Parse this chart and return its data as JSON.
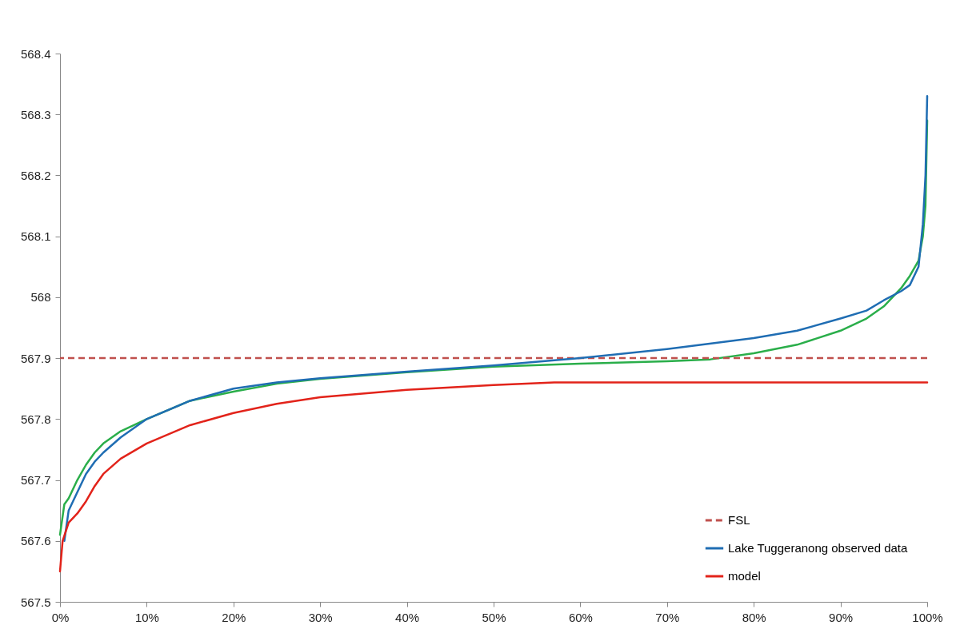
{
  "chart_data": {
    "type": "line",
    "series": [
      {
        "color": "#2aae4a",
        "x": [
          0,
          0.5,
          1,
          2,
          3,
          4,
          5,
          7,
          10,
          15,
          20,
          25,
          30,
          40,
          50,
          60,
          70,
          75,
          80,
          85,
          90,
          93,
          95,
          97,
          98,
          99,
          99.5,
          99.8,
          100
        ],
        "values": [
          567.61,
          567.66,
          567.67,
          567.7,
          567.725,
          567.745,
          567.76,
          567.78,
          567.8,
          567.83,
          567.845,
          567.858,
          567.866,
          567.877,
          567.886,
          567.891,
          567.895,
          567.898,
          567.908,
          567.922,
          567.945,
          567.965,
          567.985,
          568.015,
          568.035,
          568.06,
          568.1,
          568.15,
          568.29
        ]
      },
      {
        "name": "Lake Tuggeranong observed data",
        "color": "#1f6db3",
        "x": [
          0.5,
          1,
          2,
          3,
          4,
          5,
          7,
          10,
          15,
          20,
          25,
          30,
          40,
          50,
          60,
          70,
          80,
          85,
          90,
          93,
          95,
          97,
          98,
          99,
          99.5,
          99.8,
          100
        ],
        "values": [
          567.6,
          567.65,
          567.68,
          567.71,
          567.73,
          567.745,
          567.77,
          567.8,
          567.83,
          567.85,
          567.86,
          567.867,
          567.878,
          567.888,
          567.9,
          567.915,
          567.933,
          567.945,
          567.965,
          567.978,
          567.995,
          568.01,
          568.02,
          568.05,
          568.12,
          568.2,
          568.33
        ]
      },
      {
        "name": "model",
        "color": "#e2231a",
        "x": [
          0,
          0.3,
          1,
          2,
          3,
          4,
          5,
          7,
          10,
          15,
          20,
          25,
          30,
          40,
          50,
          57,
          100
        ],
        "values": [
          567.55,
          567.6,
          567.63,
          567.645,
          567.665,
          567.69,
          567.71,
          567.735,
          567.76,
          567.79,
          567.81,
          567.825,
          567.836,
          567.848,
          567.856,
          567.86,
          567.86
        ]
      }
    ],
    "ref_lines": [
      {
        "axis": "y",
        "value": 567.9,
        "label": "FSL",
        "color": "#c0504d",
        "line_style": "dashed"
      }
    ],
    "xlim": [
      0,
      100
    ],
    "xticks": [
      {
        "value": 0,
        "label": "0%"
      },
      {
        "value": 10,
        "label": "10%"
      },
      {
        "value": 20,
        "label": "20%"
      },
      {
        "value": 30,
        "label": "30%"
      },
      {
        "value": 40,
        "label": "40%"
      },
      {
        "value": 50,
        "label": "50%"
      },
      {
        "value": 60,
        "label": "60%"
      },
      {
        "value": 70,
        "label": "70%"
      },
      {
        "value": 80,
        "label": "80%"
      },
      {
        "value": 90,
        "label": "90%"
      },
      {
        "value": 100,
        "label": "100%"
      }
    ],
    "ylim": [
      567.5,
      568.4
    ],
    "yticks": [
      567.5,
      567.6,
      567.7,
      567.8,
      567.9,
      568,
      568.1,
      568.2,
      568.3,
      568.4
    ],
    "legend": "bottom right",
    "grid": false,
    "line_style": "solid",
    "marker": "none"
  }
}
